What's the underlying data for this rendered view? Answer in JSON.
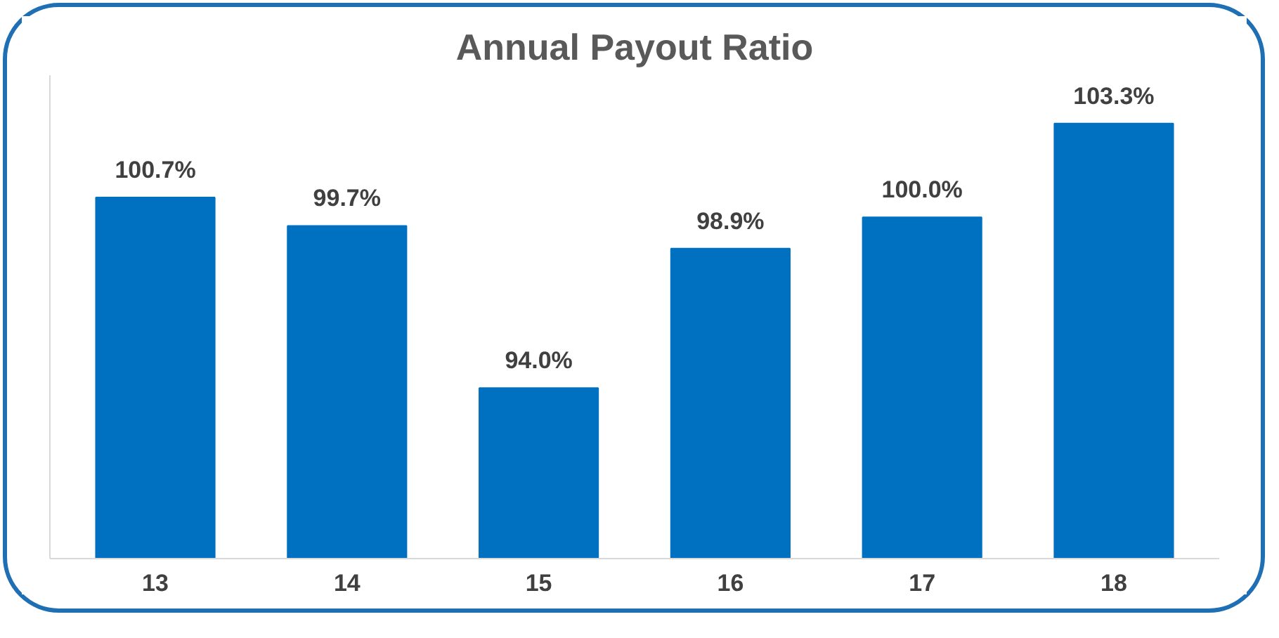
{
  "chart_data": {
    "type": "bar",
    "title": "Annual Payout Ratio",
    "categories": [
      "13",
      "14",
      "15",
      "16",
      "17",
      "18"
    ],
    "values": [
      100.7,
      99.7,
      94.0,
      98.9,
      100.0,
      103.3
    ],
    "value_labels": [
      "100.7%",
      "99.7%",
      "94.0%",
      "98.9%",
      "100.0%",
      "103.3%"
    ],
    "color": "#0070c0",
    "ylim": [
      88,
      105
    ],
    "tick_labels": "x",
    "grid": false
  }
}
